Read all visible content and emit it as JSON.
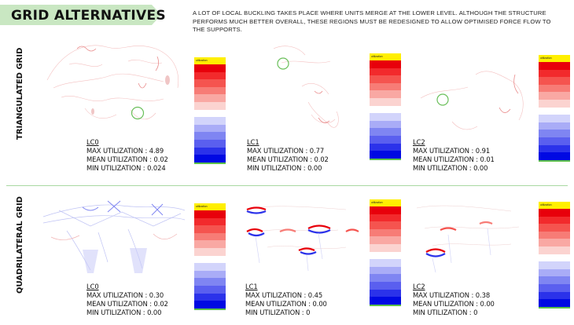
{
  "header": {
    "title": "GRID ALTERNATIVES",
    "banner_color": "#c9e7c2",
    "description": "A LOT OF LOCAL BUCKLING TAKES PLACE WHERE UNITS MERGE  AT THE LOWER LEVEL. ALTHOUGH THE STRUCTURE PERFORMS MUCH BETTER OVERALL, THESE REGIONS MUST BE REDESIGNED TO ALLOW OPTIMISED FORCE FLOW TO THE SUPPORTS."
  },
  "rows": [
    {
      "label": "TRIANGULATED GRID",
      "cases": [
        {
          "lc": "LC0",
          "max": "MAX UTILIZATION : 4.89",
          "mean": "MEAN UTILIZATION : 0.02",
          "min": "MIN  UTILIZATION : 0.024"
        },
        {
          "lc": "LC1",
          "max": "MAX UTILIZATION : 0.77",
          "mean": "MEAN UTILIZATION : 0.02",
          "min": "MIN  UTILIZATION : 0.00"
        },
        {
          "lc": "LC2",
          "max": "MAX UTILIZATION : 0.91",
          "mean": "MEAN UTILIZATION : 0.01",
          "min": "MIN  UTILIZATION : 0.00"
        }
      ]
    },
    {
      "label": "QUADRILATERAL GRID",
      "cases": [
        {
          "lc": "LC0",
          "max": "MAX UTILIZATION : 0.30",
          "mean": "MEAN UTILIZATION : 0.02",
          "min": "MIN  UTILIZATION : 0.00"
        },
        {
          "lc": "LC1",
          "max": "MAX UTILIZATION : 0.45",
          "mean": "MEAN UTILIZATION : 0.00",
          "min": "MIN  UTILIZATION : 0"
        },
        {
          "lc": "LC2",
          "max": "MAX UTILIZATION : 0.38",
          "mean": "MEAN UTILIZATION : 0.00",
          "min": "MIN  UTILIZATION : 0"
        }
      ]
    }
  ],
  "legend": {
    "header": "utilization",
    "colors": [
      "#e8000b",
      "#f22a2c",
      "#f5544f",
      "#f77c76",
      "#f9a8a3",
      "#fbd3d0",
      "#ffffff",
      "#d2d4fb",
      "#a9acf7",
      "#7f85f2",
      "#5a5fef",
      "#2b32ea",
      "#0009e3"
    ],
    "foot_color": "#5cbf4a"
  }
}
